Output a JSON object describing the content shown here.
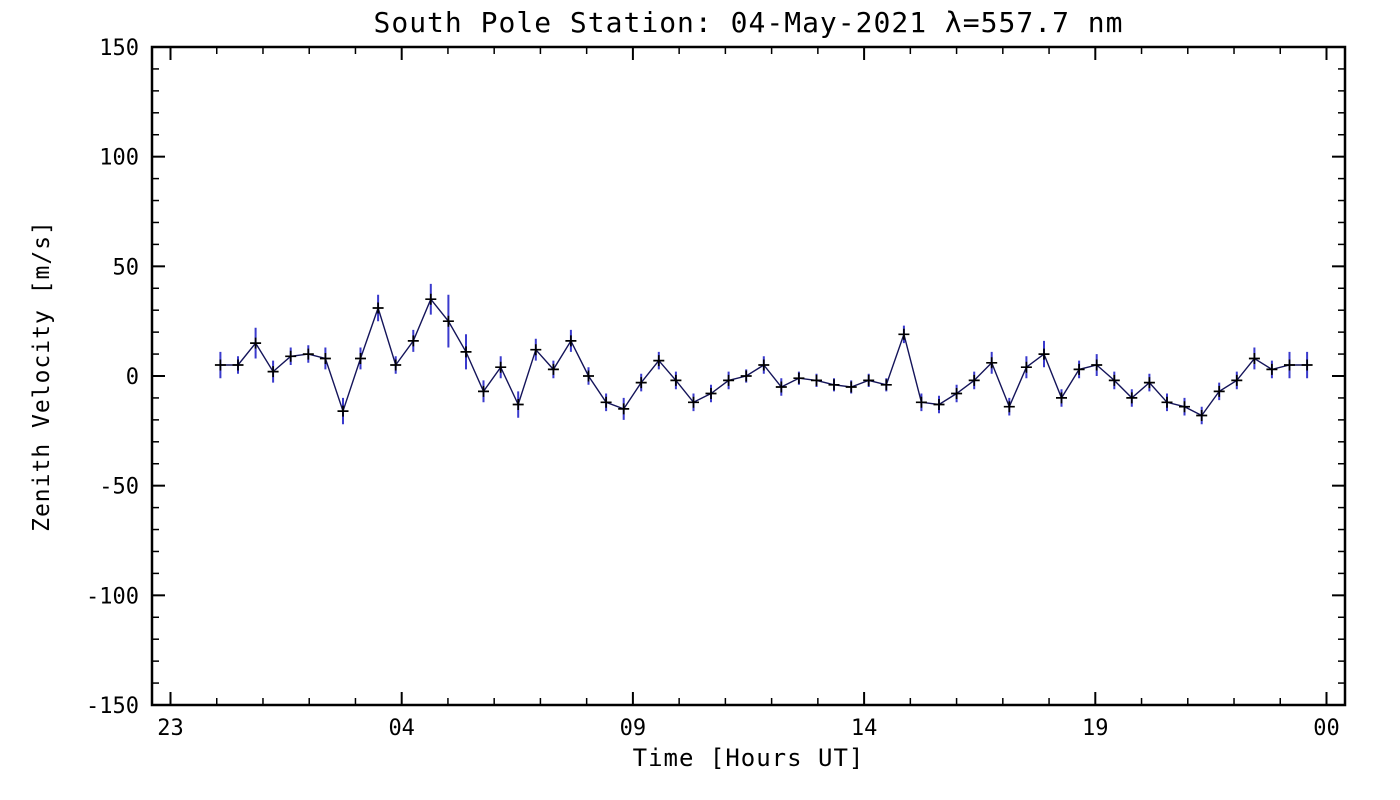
{
  "chart_data": {
    "type": "line",
    "title": "South Pole Station: 04-May-2021 λ=557.7 nm",
    "xlabel": "Time [Hours UT]",
    "ylabel": "Zenith Velocity [m/s]",
    "xlim": [
      22.6,
      48.4
    ],
    "ylim": [
      -150,
      150
    ],
    "grid": false,
    "legend": "none",
    "x_ticks": {
      "values": [
        23,
        28,
        33,
        38,
        43,
        48
      ],
      "labels": [
        "23",
        "04",
        "09",
        "14",
        "19",
        "00"
      ],
      "minor_step": 1
    },
    "y_ticks": {
      "values": [
        -150,
        -100,
        -50,
        0,
        50,
        100,
        150
      ],
      "labels": [
        "-150",
        "-100",
        "-50",
        "0",
        "50",
        "100",
        "150"
      ],
      "minor_step": 10
    },
    "colors": {
      "line": "#14145a",
      "error_bar": "#3a3acd",
      "marker": "#000000",
      "axis": "#000000",
      "background": "#ffffff"
    },
    "series": [
      {
        "name": "zenith_velocity",
        "marker": "plus",
        "x": [
          24.08,
          24.46,
          24.84,
          25.22,
          25.6,
          25.98,
          26.35,
          26.73,
          27.11,
          27.49,
          27.87,
          28.25,
          28.63,
          29.01,
          29.39,
          29.77,
          30.14,
          30.52,
          30.9,
          31.28,
          31.66,
          32.04,
          32.42,
          32.8,
          33.18,
          33.56,
          33.93,
          34.31,
          34.69,
          35.07,
          35.45,
          35.83,
          36.21,
          36.59,
          36.97,
          37.35,
          37.72,
          38.1,
          38.48,
          38.86,
          39.24,
          39.62,
          40.0,
          40.38,
          40.76,
          41.14,
          41.51,
          41.89,
          42.27,
          42.65,
          43.03,
          43.41,
          43.79,
          44.17,
          44.55,
          44.93,
          45.3,
          45.68,
          46.06,
          46.44,
          46.82,
          47.2,
          47.58
        ],
        "y": [
          5,
          5,
          15,
          2,
          9,
          10,
          8,
          -16,
          8,
          31,
          5,
          16,
          35,
          25,
          11,
          -7,
          4,
          -13,
          12,
          3,
          16,
          0,
          -12,
          -15,
          -3,
          7,
          -2,
          -12,
          -8,
          -2,
          0,
          5,
          -5,
          -1,
          -2,
          -4,
          -5,
          -2,
          -4,
          19,
          -12,
          -13,
          -8,
          -2,
          6,
          -14,
          4,
          10,
          -10,
          3,
          5,
          -2,
          -10,
          -3,
          -12,
          -14,
          -18,
          -7,
          -2,
          8,
          3,
          5,
          5
        ],
        "yerr": [
          6,
          4,
          7,
          5,
          4,
          4,
          5,
          6,
          5,
          6,
          4,
          5,
          7,
          12,
          8,
          5,
          5,
          6,
          5,
          4,
          5,
          4,
          4,
          5,
          4,
          4,
          4,
          4,
          4,
          4,
          3,
          4,
          4,
          3,
          3,
          3,
          3,
          3,
          3,
          4,
          4,
          4,
          4,
          4,
          5,
          4,
          5,
          6,
          4,
          4,
          5,
          4,
          4,
          4,
          4,
          4,
          4,
          4,
          4,
          5,
          4,
          6,
          6
        ]
      }
    ]
  }
}
